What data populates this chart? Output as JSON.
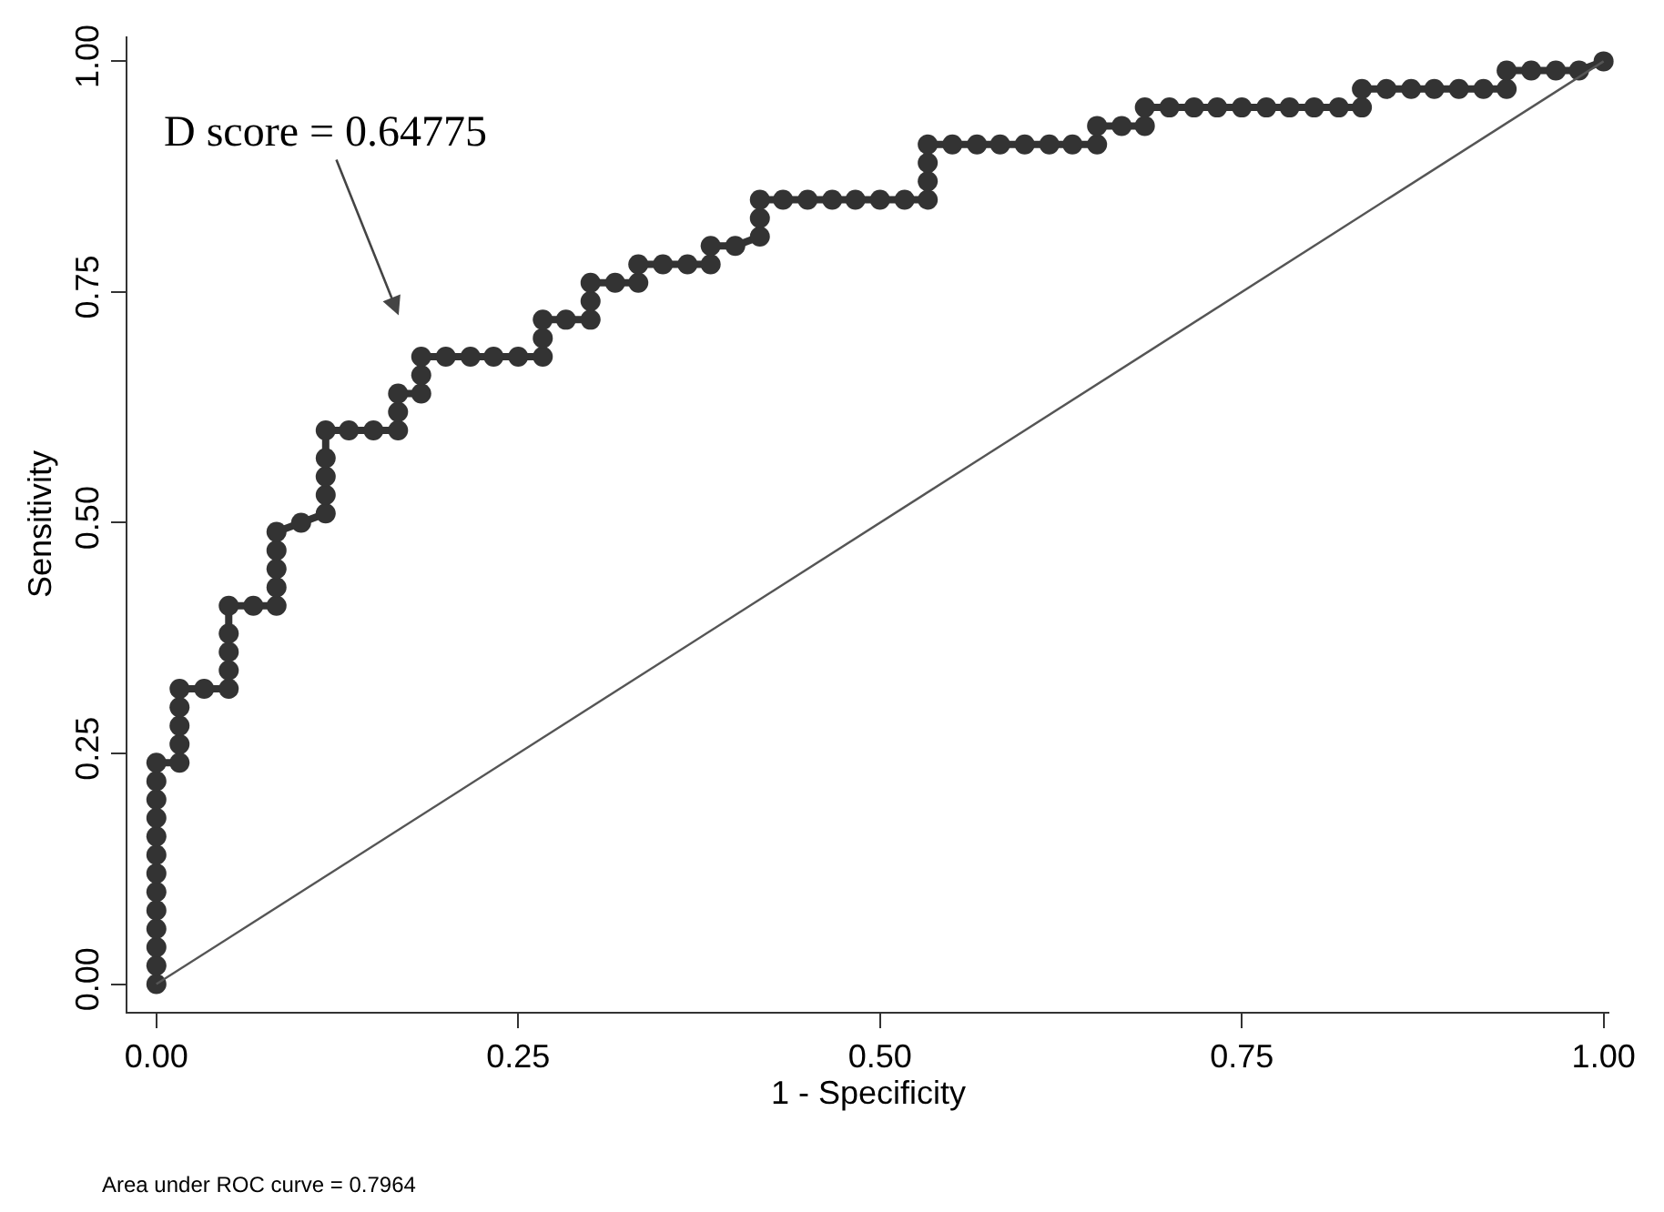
{
  "chart_data": {
    "type": "line",
    "xlabel": "1 - Specificity",
    "ylabel": "Sensitivity",
    "xlim": [
      -0.02,
      1.004
    ],
    "ylim": [
      -0.03,
      1.027
    ],
    "xticks": [
      {
        "value": 0,
        "label": "0.00"
      },
      {
        "value": 0.25,
        "label": "0.25"
      },
      {
        "value": 0.5,
        "label": "0.50"
      },
      {
        "value": 0.75,
        "label": "0.75"
      },
      {
        "value": 1,
        "label": "1.00"
      }
    ],
    "yticks": [
      {
        "value": 0,
        "label": "0.00"
      },
      {
        "value": 0.25,
        "label": "0.25"
      },
      {
        "value": 0.5,
        "label": "0.50"
      },
      {
        "value": 0.75,
        "label": "0.75"
      },
      {
        "value": 1,
        "label": "1.00"
      }
    ],
    "grid": false,
    "series": [
      {
        "marker": "circle",
        "color": "#333333",
        "x": [
          0,
          0,
          0,
          0,
          0,
          0,
          0,
          0,
          0,
          0,
          0,
          0,
          0,
          0.016,
          0.016,
          0.016,
          0.016,
          0.016,
          0.033,
          0.05,
          0.05,
          0.05,
          0.05,
          0.05,
          0.067,
          0.083,
          0.083,
          0.083,
          0.083,
          0.083,
          0.1,
          0.117,
          0.117,
          0.117,
          0.117,
          0.117,
          0.133,
          0.15,
          0.167,
          0.167,
          0.167,
          0.183,
          0.183,
          0.183,
          0.2,
          0.217,
          0.233,
          0.25,
          0.267,
          0.267,
          0.267,
          0.283,
          0.3,
          0.3,
          0.3,
          0.317,
          0.333,
          0.333,
          0.35,
          0.367,
          0.383,
          0.383,
          0.4,
          0.417,
          0.417,
          0.417,
          0.433,
          0.45,
          0.467,
          0.483,
          0.5,
          0.517,
          0.533,
          0.533,
          0.533,
          0.533,
          0.55,
          0.567,
          0.583,
          0.6,
          0.617,
          0.633,
          0.65,
          0.65,
          0.667,
          0.683,
          0.683,
          0.7,
          0.717,
          0.733,
          0.75,
          0.767,
          0.783,
          0.8,
          0.817,
          0.833,
          0.833,
          0.85,
          0.867,
          0.883,
          0.9,
          0.917,
          0.933,
          0.933,
          0.95,
          0.967,
          0.983,
          1
        ],
        "values": [
          0,
          0.02,
          0.04,
          0.06,
          0.08,
          0.1,
          0.12,
          0.14,
          0.16,
          0.18,
          0.2,
          0.22,
          0.24,
          0.24,
          0.26,
          0.28,
          0.3,
          0.32,
          0.32,
          0.32,
          0.34,
          0.36,
          0.38,
          0.41,
          0.41,
          0.41,
          0.43,
          0.45,
          0.47,
          0.49,
          0.5,
          0.51,
          0.53,
          0.55,
          0.57,
          0.6,
          0.6,
          0.6,
          0.6,
          0.62,
          0.64,
          0.64,
          0.66,
          0.68,
          0.68,
          0.68,
          0.68,
          0.68,
          0.68,
          0.7,
          0.72,
          0.72,
          0.72,
          0.74,
          0.76,
          0.76,
          0.76,
          0.78,
          0.78,
          0.78,
          0.78,
          0.8,
          0.8,
          0.81,
          0.83,
          0.85,
          0.85,
          0.85,
          0.85,
          0.85,
          0.85,
          0.85,
          0.85,
          0.87,
          0.89,
          0.91,
          0.91,
          0.91,
          0.91,
          0.91,
          0.91,
          0.91,
          0.91,
          0.93,
          0.93,
          0.93,
          0.95,
          0.95,
          0.95,
          0.95,
          0.95,
          0.95,
          0.95,
          0.95,
          0.95,
          0.95,
          0.97,
          0.97,
          0.97,
          0.97,
          0.97,
          0.97,
          0.97,
          0.99,
          0.99,
          0.99,
          0.99,
          1
        ]
      },
      {
        "marker": "none",
        "color": "#555555",
        "x": [
          0,
          1
        ],
        "values": [
          0,
          1
        ]
      }
    ],
    "annotations": [
      "D score = 0.64775",
      "Area under ROC curve = 0.7964"
    ]
  }
}
